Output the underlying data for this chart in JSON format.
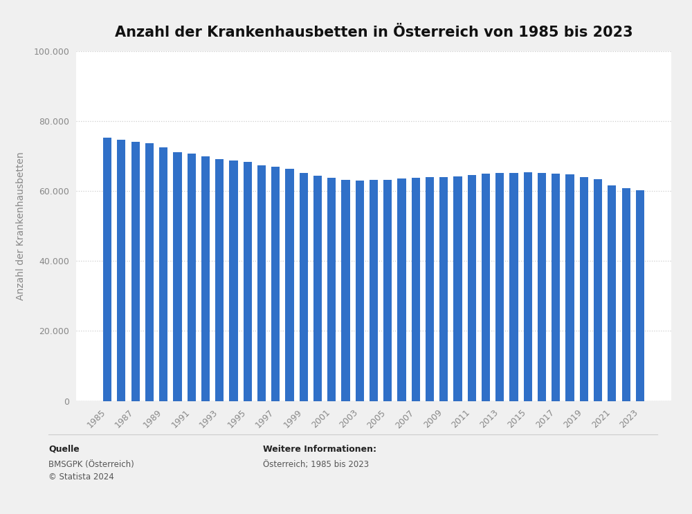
{
  "title": "Anzahl der Krankenhausbetten in Österreich von 1985 bis 2023",
  "ylabel": "Anzahl der Krankenhausbetten",
  "years": [
    1985,
    1986,
    1987,
    1988,
    1989,
    1990,
    1991,
    1992,
    1993,
    1994,
    1995,
    1996,
    1997,
    1998,
    1999,
    2000,
    2001,
    2002,
    2003,
    2004,
    2005,
    2006,
    2007,
    2008,
    2009,
    2010,
    2011,
    2012,
    2013,
    2014,
    2015,
    2016,
    2017,
    2018,
    2019,
    2020,
    2021,
    2022,
    2023
  ],
  "values": [
    75400,
    74800,
    74200,
    73800,
    72500,
    71200,
    70700,
    69900,
    69200,
    68800,
    68400,
    67500,
    67000,
    66500,
    65200,
    64500,
    63800,
    63200,
    63100,
    63200,
    63300,
    63700,
    63900,
    64100,
    64100,
    64200,
    64600,
    65000,
    65200,
    65300,
    65500,
    65200,
    65100,
    64800,
    64000,
    63500,
    61700,
    60800,
    60200
  ],
  "bar_color": "#3070C8",
  "background_color": "#f0f0f0",
  "plot_background_color": "#ffffff",
  "ylim": [
    0,
    100000
  ],
  "yticks": [
    0,
    20000,
    40000,
    60000,
    80000,
    100000
  ],
  "ytick_labels": [
    "0",
    "20.000",
    "40.000",
    "60.000",
    "80.000",
    "100.000"
  ],
  "xtick_years": [
    1985,
    1987,
    1989,
    1991,
    1993,
    1995,
    1997,
    1999,
    2001,
    2003,
    2005,
    2007,
    2009,
    2011,
    2013,
    2015,
    2017,
    2019,
    2021,
    2023
  ],
  "grid_color": "#cccccc",
  "title_fontsize": 15,
  "axis_label_fontsize": 10,
  "tick_fontsize": 9,
  "footer_source_title": "Quelle",
  "footer_source_body": "BMSGPK (Österreich)\n© Statista 2024",
  "footer_info_title": "Weitere Informationen:",
  "footer_info_body": "Österreich; 1985 bis 2023"
}
